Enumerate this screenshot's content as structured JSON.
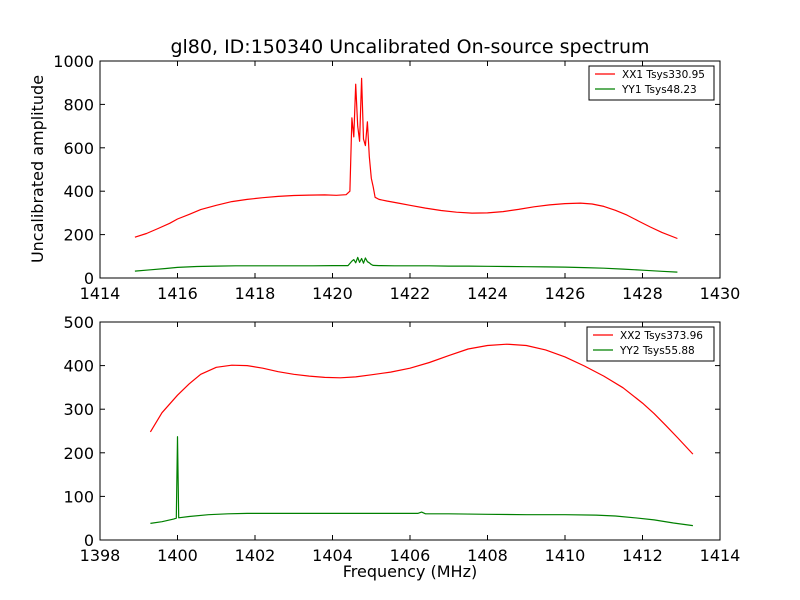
{
  "chart_data": [
    {
      "type": "line",
      "title": "gl80, ID:150340 Uncalibrated On-source spectrum",
      "xlabel": "",
      "ylabel": "Uncalibrated amplitude",
      "xlim": [
        1414,
        1430
      ],
      "ylim": [
        0,
        1000
      ],
      "xticks": [
        1414,
        1416,
        1418,
        1420,
        1422,
        1424,
        1426,
        1428,
        1430
      ],
      "yticks": [
        0,
        200,
        400,
        600,
        800,
        1000
      ],
      "legend_position": "top-right",
      "grid": false,
      "series": [
        {
          "name": "XX1 Tsys330.95",
          "color": "#ff0000",
          "x": [
            1414.9,
            1415.2,
            1415.5,
            1415.8,
            1416.0,
            1416.3,
            1416.6,
            1417.0,
            1417.4,
            1417.8,
            1418.2,
            1418.6,
            1419.0,
            1419.4,
            1419.8,
            1420.1,
            1420.35,
            1420.45,
            1420.5,
            1420.55,
            1420.6,
            1420.65,
            1420.7,
            1420.75,
            1420.8,
            1420.85,
            1420.9,
            1420.95,
            1421.0,
            1421.05,
            1421.1,
            1421.2,
            1421.4,
            1421.7,
            1422.0,
            1422.4,
            1422.8,
            1423.2,
            1423.6,
            1424.0,
            1424.4,
            1424.8,
            1425.2,
            1425.6,
            1426.0,
            1426.4,
            1426.7,
            1427.0,
            1427.3,
            1427.6,
            1427.9,
            1428.2,
            1428.5,
            1428.9
          ],
          "y": [
            188,
            205,
            228,
            252,
            272,
            293,
            315,
            335,
            352,
            362,
            370,
            376,
            380,
            382,
            383,
            381,
            384,
            400,
            738,
            650,
            893,
            700,
            630,
            920,
            640,
            610,
            720,
            560,
            460,
            420,
            372,
            362,
            355,
            345,
            335,
            322,
            311,
            303,
            299,
            300,
            306,
            316,
            328,
            337,
            343,
            345,
            341,
            330,
            312,
            290,
            262,
            235,
            210,
            182
          ]
        },
        {
          "name": "YY1 Tsys48.23",
          "color": "#008000",
          "x": [
            1414.9,
            1415.3,
            1415.7,
            1416.0,
            1416.5,
            1417.0,
            1417.5,
            1418.0,
            1418.5,
            1419.0,
            1419.5,
            1420.0,
            1420.4,
            1420.5,
            1420.55,
            1420.6,
            1420.65,
            1420.7,
            1420.75,
            1420.8,
            1420.85,
            1420.9,
            1420.95,
            1421.0,
            1421.05,
            1421.2,
            1421.6,
            1422.0,
            1422.5,
            1423.0,
            1423.5,
            1424.0,
            1424.5,
            1425.0,
            1425.5,
            1426.0,
            1426.5,
            1427.0,
            1427.5,
            1428.0,
            1428.5,
            1428.9
          ],
          "y": [
            32,
            38,
            44,
            49,
            53,
            55,
            56,
            56,
            56,
            56,
            56,
            57,
            57,
            78,
            85,
            70,
            95,
            72,
            90,
            68,
            92,
            75,
            70,
            62,
            58,
            57,
            56,
            56,
            56,
            55,
            55,
            54,
            53,
            52,
            51,
            50,
            48,
            45,
            41,
            36,
            31,
            27
          ]
        }
      ]
    },
    {
      "type": "line",
      "title": "",
      "xlabel": "Frequency (MHz)",
      "ylabel": "",
      "xlim": [
        1398,
        1414
      ],
      "ylim": [
        0,
        500
      ],
      "xticks": [
        1398,
        1400,
        1402,
        1404,
        1406,
        1408,
        1410,
        1412,
        1414
      ],
      "yticks": [
        0,
        100,
        200,
        300,
        400,
        500
      ],
      "legend_position": "top-right",
      "grid": false,
      "series": [
        {
          "name": "XX2 Tsys373.96",
          "color": "#ff0000",
          "x": [
            1399.3,
            1399.6,
            1400.0,
            1400.3,
            1400.6,
            1401.0,
            1401.4,
            1401.8,
            1402.2,
            1402.6,
            1403.0,
            1403.4,
            1403.8,
            1404.2,
            1404.6,
            1405.0,
            1405.5,
            1406.0,
            1406.5,
            1407.0,
            1407.5,
            1408.0,
            1408.5,
            1409.0,
            1409.5,
            1410.0,
            1410.5,
            1411.0,
            1411.5,
            1412.0,
            1412.3,
            1412.6,
            1412.9,
            1413.3
          ],
          "y": [
            248,
            292,
            332,
            358,
            380,
            396,
            401,
            400,
            394,
            386,
            380,
            376,
            373,
            372,
            374,
            379,
            385,
            394,
            407,
            423,
            438,
            446,
            449,
            446,
            436,
            420,
            399,
            376,
            349,
            314,
            290,
            263,
            235,
            197
          ]
        },
        {
          "name": "YY2 Tsys55.88",
          "color": "#008000",
          "x": [
            1399.3,
            1399.6,
            1399.9,
            1399.97,
            1400.0,
            1400.03,
            1400.3,
            1400.8,
            1401.3,
            1401.8,
            1402.5,
            1403.5,
            1404.5,
            1405.5,
            1406.2,
            1406.3,
            1406.4,
            1407.0,
            1408.0,
            1409.0,
            1410.0,
            1410.8,
            1411.3,
            1411.8,
            1412.3,
            1412.8,
            1413.3
          ],
          "y": [
            38,
            42,
            48,
            50,
            237,
            51,
            54,
            58,
            60,
            61,
            61,
            61,
            61,
            61,
            61,
            64,
            60,
            60,
            59,
            58,
            58,
            57,
            55,
            51,
            46,
            39,
            33
          ]
        }
      ]
    }
  ]
}
